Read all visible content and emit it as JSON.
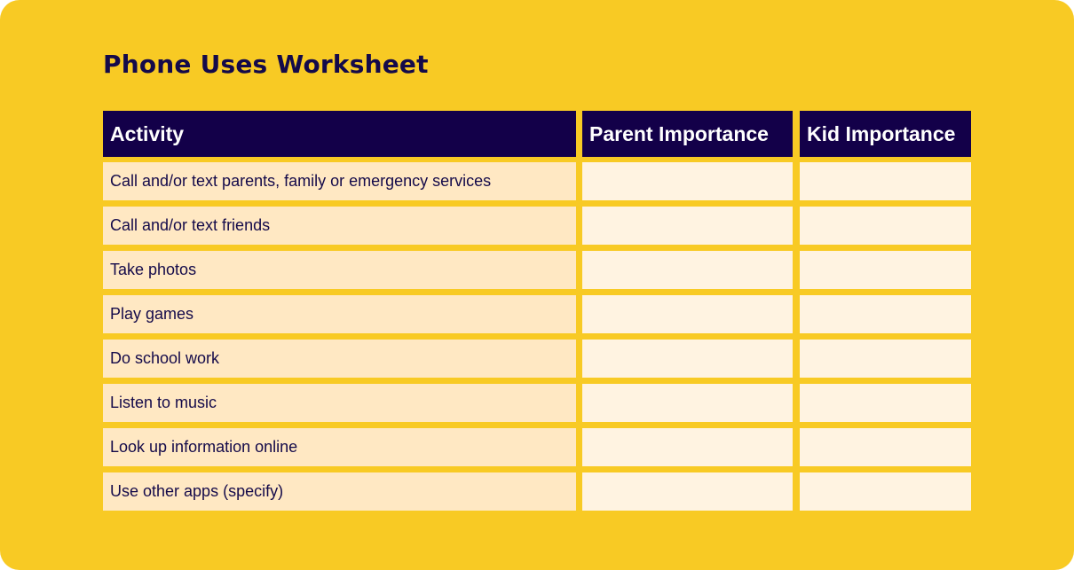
{
  "title": "Phone Uses Worksheet",
  "table": {
    "headers": [
      "Activity",
      "Parent Importance",
      "Kid Importance"
    ],
    "rows": [
      {
        "activity": "Call and/or text parents, family or emergency services",
        "parent": "",
        "kid": ""
      },
      {
        "activity": "Call and/or text friends",
        "parent": "",
        "kid": ""
      },
      {
        "activity": "Take photos",
        "parent": "",
        "kid": ""
      },
      {
        "activity": "Play games",
        "parent": "",
        "kid": ""
      },
      {
        "activity": "Do school work",
        "parent": "",
        "kid": ""
      },
      {
        "activity": "Listen to music",
        "parent": "",
        "kid": ""
      },
      {
        "activity": "Look up information online",
        "parent": "",
        "kid": ""
      },
      {
        "activity": "Use  other apps (specify)",
        "parent": "",
        "kid": ""
      }
    ]
  },
  "colors": {
    "background": "#f8ca24",
    "header": "#130049",
    "text": "#140a4a",
    "activity_cell": "#ffe8c3",
    "blank_cell": "#fff3e1"
  }
}
